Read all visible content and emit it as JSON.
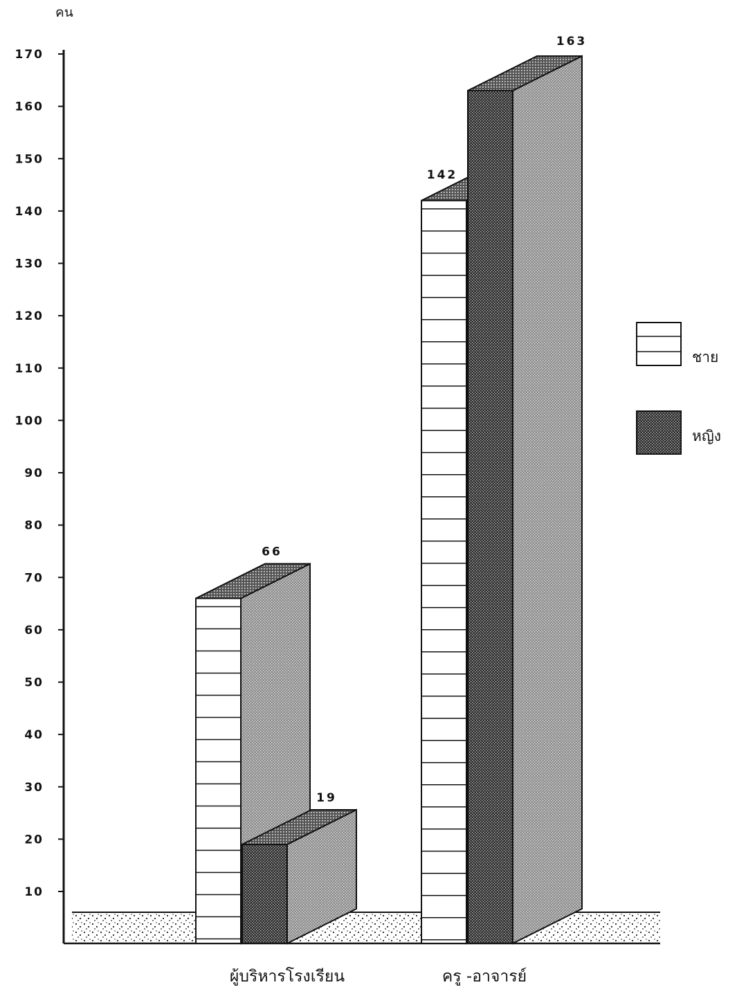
{
  "chart_data": {
    "type": "bar",
    "ylabel": "คน",
    "ylim": [
      0,
      170
    ],
    "yticks": [
      10,
      20,
      30,
      40,
      50,
      60,
      70,
      80,
      90,
      100,
      110,
      120,
      130,
      140,
      150,
      160,
      170
    ],
    "categories": [
      "ผู้บริหารโรงเรียน",
      "ครู -อาจารย์"
    ],
    "series": [
      {
        "name": "ชาย",
        "values": [
          66,
          142
        ]
      },
      {
        "name": "หญิง",
        "values": [
          19,
          163
        ]
      }
    ],
    "legend_position": "right",
    "grid": false
  }
}
